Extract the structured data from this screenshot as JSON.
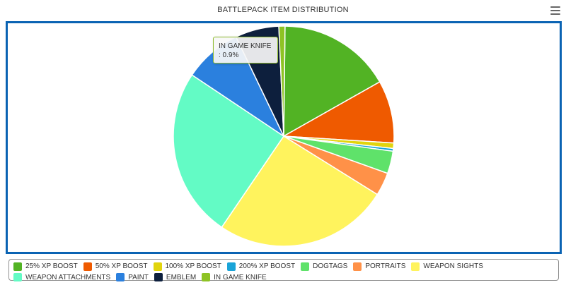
{
  "title": "BATTLEPACK ITEM DISTRIBUTION",
  "tooltip": {
    "name": "IN GAME KNIFE",
    "value": ": 0.9%"
  },
  "chart_data": {
    "type": "pie",
    "title": "BATTLEPACK ITEM DISTRIBUTION",
    "legend_position": "bottom",
    "slices": [
      {
        "name": "25% XP BOOST",
        "value": 16.6,
        "color": "#52b324"
      },
      {
        "name": "50% XP BOOST",
        "value": 9.2,
        "color": "#ef5a00"
      },
      {
        "name": "100% XP BOOST",
        "value": 0.8,
        "color": "#e1d40d"
      },
      {
        "name": "200% XP BOOST",
        "value": 0.4,
        "color": "#1aa4d8"
      },
      {
        "name": "DOGTAGS",
        "value": 3.3,
        "color": "#5fe26a"
      },
      {
        "name": "PORTRAITS",
        "value": 3.4,
        "color": "#ff9148"
      },
      {
        "name": "WEAPON SIGHTS",
        "value": 25.6,
        "color": "#fff35d"
      },
      {
        "name": "WEAPON ATTACHMENTS",
        "value": 24.9,
        "color": "#63fbc5"
      },
      {
        "name": "PAINT",
        "value": 8.5,
        "color": "#2b80de"
      },
      {
        "name": "EMBLEM",
        "value": 6.4,
        "color": "#0d1f3d"
      },
      {
        "name": "IN GAME KNIFE",
        "value": 0.9,
        "color": "#8ec324"
      }
    ]
  }
}
